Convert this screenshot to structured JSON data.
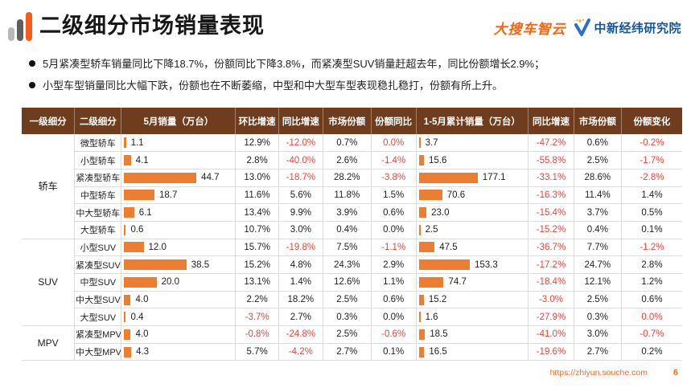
{
  "slide": {
    "title": "二级细分市场销量表现",
    "bullets": [
      "5月紧凑型轿车销量同比下降18.7%，份额同比下降3.8%，而紧凑型SUV销量赶超去年，同比份额增长2.9%；",
      "小型车型销量同比大幅下跌，份额也在不断萎缩，中型和中大型车型表现稳扎稳打，份额有所上升。"
    ],
    "logos": {
      "left_brand": "大搜车智云",
      "right_brand": "中新经纬研究院"
    },
    "footer": {
      "url": "https://zhiyun.souche.com",
      "page": "6"
    },
    "accent_orange": "#ed7d31",
    "header_brown": "#6f3d1e",
    "negative_red": "#e2483d"
  },
  "table": {
    "headers": [
      "一级细分",
      "二级细分",
      "5月销量（万台）",
      "环比增速",
      "同比增速",
      "市场份额",
      "份额同比",
      "1-5月累计销量（万台）",
      "同比增速",
      "市场份额",
      "份额变化"
    ],
    "bar_max": {
      "may": 44.7,
      "cum": 177.1
    },
    "groups": [
      {
        "label": "轿车",
        "rows": [
          {
            "segment": "微型轿车",
            "may": "1.1",
            "mom": "12.9%",
            "yoy": "-12.0%",
            "share": "0.7%",
            "share_yoy": "0.0%",
            "cum": "3.7",
            "cum_yoy": "-47.2%",
            "cum_share": "0.6%",
            "share_chg": "-0.2%",
            "red": [
              "share_yoy"
            ]
          },
          {
            "segment": "小型轿车",
            "may": "4.1",
            "mom": "2.8%",
            "yoy": "-40.0%",
            "share": "2.6%",
            "share_yoy": "-1.4%",
            "cum": "15.6",
            "cum_yoy": "-55.8%",
            "cum_share": "2.5%",
            "share_chg": "-1.7%"
          },
          {
            "segment": "紧凑型轿车",
            "may": "44.7",
            "mom": "13.0%",
            "yoy": "-18.7%",
            "share": "28.2%",
            "share_yoy": "-3.8%",
            "cum": "177.1",
            "cum_yoy": "-33.1%",
            "cum_share": "28.6%",
            "share_chg": "-2.8%"
          },
          {
            "segment": "中型轿车",
            "may": "18.7",
            "mom": "11.6%",
            "yoy": "5.6%",
            "share": "11.8%",
            "share_yoy": "1.5%",
            "cum": "70.6",
            "cum_yoy": "-16.3%",
            "cum_share": "11.4%",
            "share_chg": "1.4%"
          },
          {
            "segment": "中大型轿车",
            "may": "6.1",
            "mom": "13.4%",
            "yoy": "9.9%",
            "share": "3.9%",
            "share_yoy": "0.6%",
            "cum": "23.0",
            "cum_yoy": "-15.4%",
            "cum_share": "3.7%",
            "share_chg": "0.5%"
          },
          {
            "segment": "大型轿车",
            "may": "0.6",
            "mom": "10.7%",
            "yoy": "3.0%",
            "share": "0.4%",
            "share_yoy": "0.0%",
            "cum": "2.5",
            "cum_yoy": "-15.2%",
            "cum_share": "0.4%",
            "share_chg": "0.1%"
          }
        ]
      },
      {
        "label": "SUV",
        "rows": [
          {
            "segment": "小型SUV",
            "may": "12.0",
            "mom": "15.7%",
            "yoy": "-19.8%",
            "share": "7.5%",
            "share_yoy": "-1.1%",
            "cum": "47.5",
            "cum_yoy": "-36.7%",
            "cum_share": "7.7%",
            "share_chg": "-1.2%"
          },
          {
            "segment": "紧凑型SUV",
            "may": "38.5",
            "mom": "15.2%",
            "yoy": "4.8%",
            "share": "24.3%",
            "share_yoy": "2.9%",
            "cum": "153.3",
            "cum_yoy": "-17.2%",
            "cum_share": "24.7%",
            "share_chg": "2.8%"
          },
          {
            "segment": "中型SUV",
            "may": "20.0",
            "mom": "13.1%",
            "yoy": "1.4%",
            "share": "12.6%",
            "share_yoy": "1.1%",
            "cum": "74.7",
            "cum_yoy": "-18.4%",
            "cum_share": "12.1%",
            "share_chg": "1.2%"
          },
          {
            "segment": "中大型SUV",
            "may": "4.0",
            "mom": "2.2%",
            "yoy": "18.2%",
            "share": "2.5%",
            "share_yoy": "0.6%",
            "cum": "15.2",
            "cum_yoy": "-3.0%",
            "cum_share": "2.5%",
            "share_chg": "0.6%"
          },
          {
            "segment": "大型SUV",
            "may": "0.4",
            "mom": "-3.7%",
            "yoy": "2.7%",
            "share": "0.3%",
            "share_yoy": "0.0%",
            "cum": "1.6",
            "cum_yoy": "-27.9%",
            "cum_share": "0.3%",
            "share_chg": "0.0%",
            "red": [
              "share_chg"
            ]
          }
        ]
      },
      {
        "label": "MPV",
        "rows": [
          {
            "segment": "紧凑型MPV",
            "may": "4.0",
            "mom": "-0.8%",
            "yoy": "-24.8%",
            "share": "2.5%",
            "share_yoy": "-0.6%",
            "cum": "18.5",
            "cum_yoy": "-41.0%",
            "cum_share": "3.0%",
            "share_chg": "-0.7%"
          },
          {
            "segment": "中大型MPV",
            "may": "4.3",
            "mom": "5.7%",
            "yoy": "-4.2%",
            "share": "2.7%",
            "share_yoy": "0.1%",
            "cum": "16.5",
            "cum_yoy": "-19.6%",
            "cum_share": "2.7%",
            "share_chg": "0.2%"
          }
        ]
      }
    ]
  }
}
